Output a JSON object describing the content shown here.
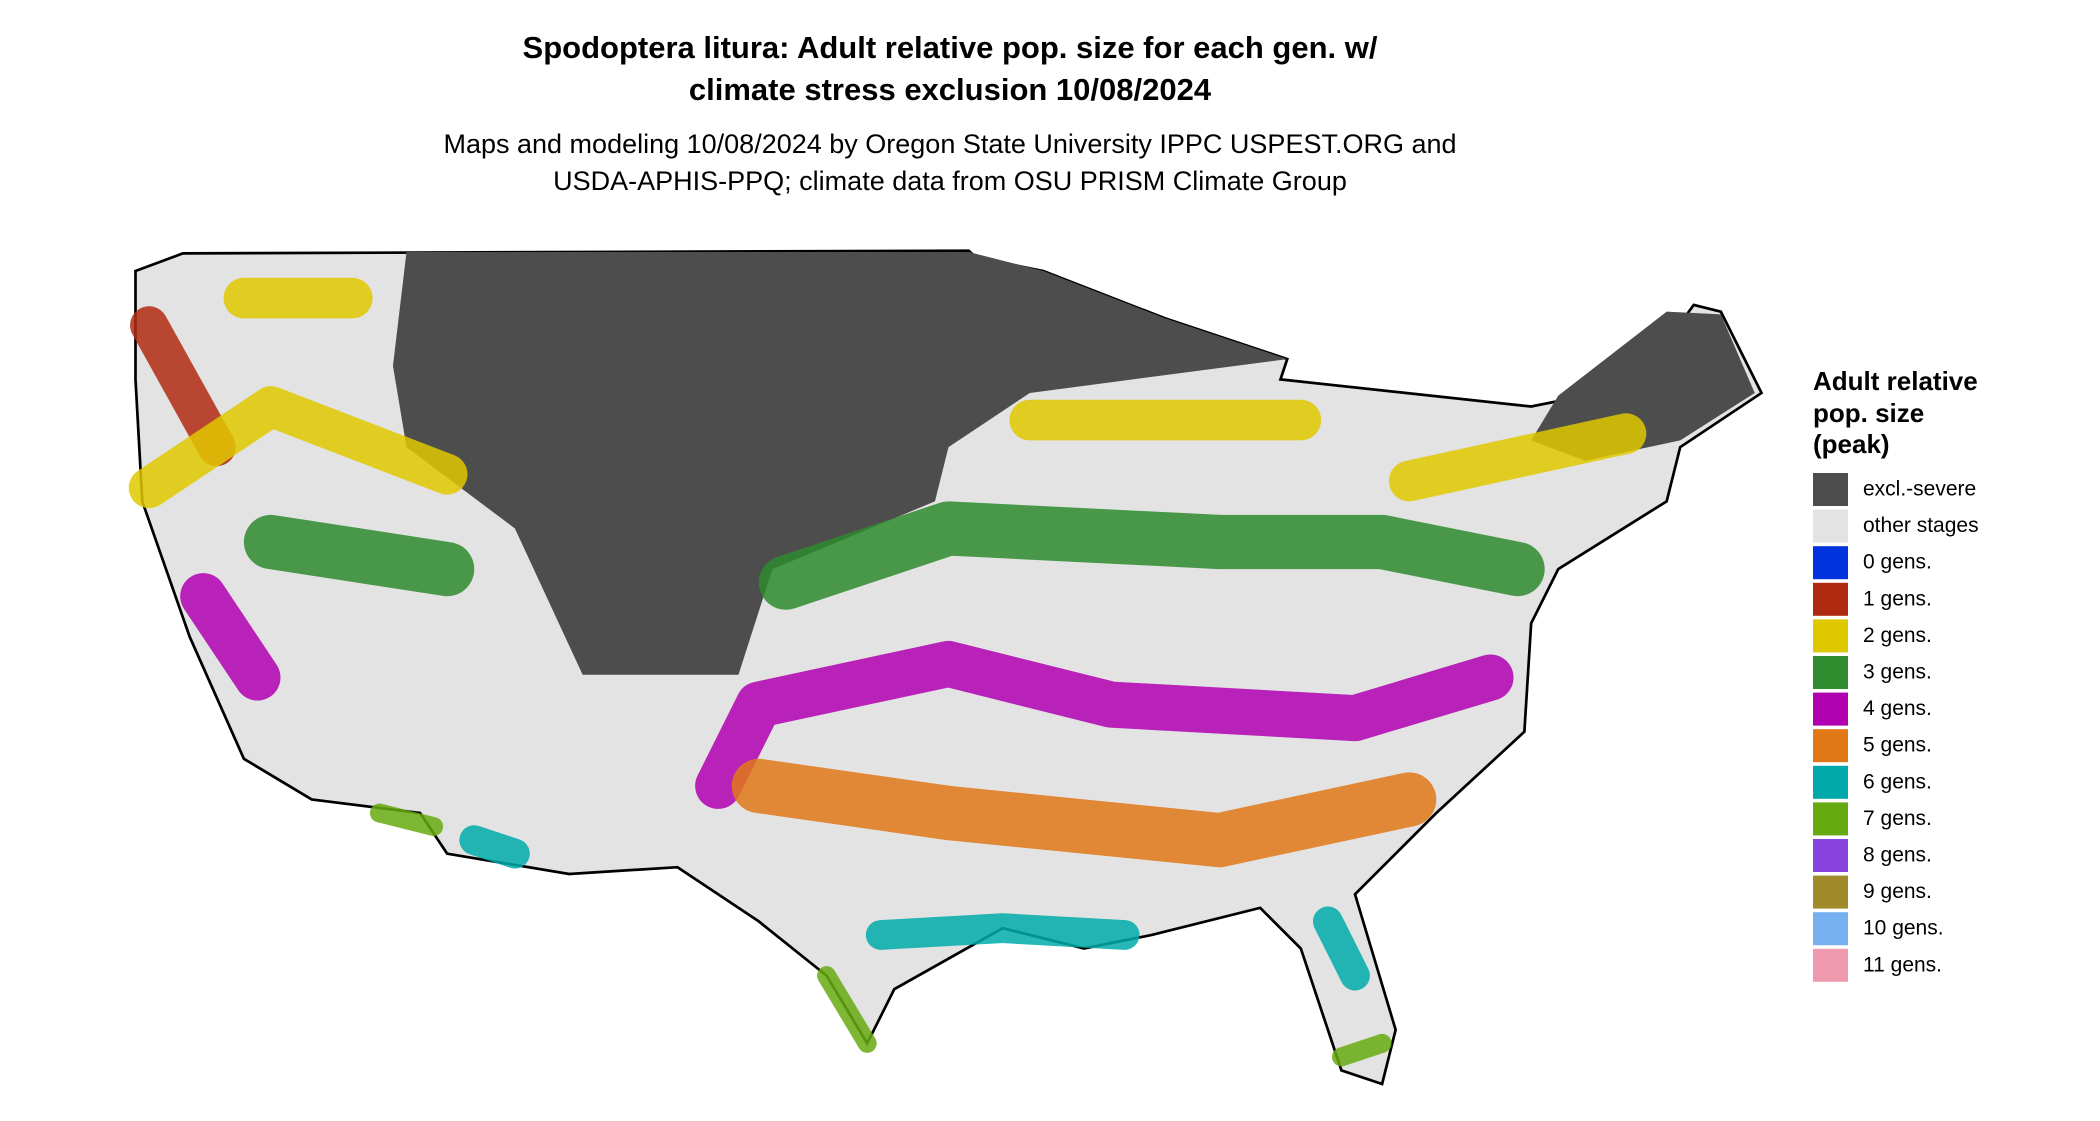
{
  "header": {
    "title": [
      "Spodoptera litura: Adult relative pop. size for each gen. w/",
      "climate stress exclusion 10/08/2024"
    ],
    "subtitle": [
      "Maps and modeling 10/08/2024 by Oregon State University IPPC USPEST.ORG and",
      "USDA-APHIS-PPQ; climate data from OSU PRISM Climate Group"
    ]
  },
  "legend": {
    "title": [
      "Adult relative",
      "pop. size",
      "(peak)"
    ],
    "items": [
      {
        "label": "excl.-severe",
        "color": "#4d4d4d"
      },
      {
        "label": "other stages",
        "color": "#e3e3e3"
      },
      {
        "label": "0 gens.",
        "color": "#0033dd"
      },
      {
        "label": "1 gens.",
        "color": "#b02a12"
      },
      {
        "label": "2 gens.",
        "color": "#e0c800"
      },
      {
        "label": "3 gens.",
        "color": "#2e8b2e"
      },
      {
        "label": "4 gens.",
        "color": "#b000b0"
      },
      {
        "label": "5 gens.",
        "color": "#e07818"
      },
      {
        "label": "6 gens.",
        "color": "#00aaaa"
      },
      {
        "label": "7 gens.",
        "color": "#66aa11"
      },
      {
        "label": "8 gens.",
        "color": "#8844dd"
      },
      {
        "label": "9 gens.",
        "color": "#a08a2a"
      },
      {
        "label": "10 gens.",
        "color": "#77b0f0"
      },
      {
        "label": "11 gens.",
        "color": "#f09ab0"
      }
    ]
  }
}
